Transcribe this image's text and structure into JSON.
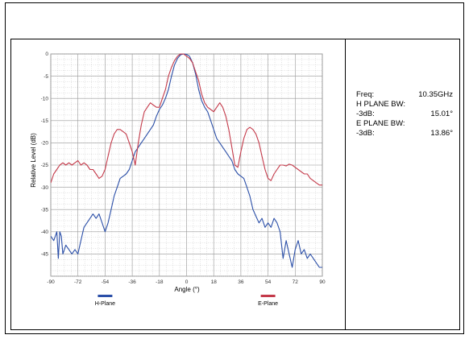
{
  "info": {
    "freq_label": "Freq:",
    "freq_value": "10.35GHz",
    "h_plane_label": "H PLANE BW:",
    "h_3db_label": "-3dB:",
    "h_3db_value": "15.01°",
    "e_plane_label": "E PLANE BW:",
    "e_3db_label": "-3dB:",
    "e_3db_value": "13.86°"
  },
  "chart_data": {
    "type": "line",
    "title": "",
    "xlabel": "Angle (°)",
    "ylabel": "Relative Level (dB)",
    "xlim": [
      -90,
      90
    ],
    "ylim": [
      -50,
      0
    ],
    "xticks": [
      -90,
      -72,
      -54,
      -36,
      -18,
      0,
      18,
      36,
      54,
      72,
      90
    ],
    "yticks": [
      0,
      -5,
      -10,
      -15,
      -20,
      -25,
      -30,
      -35,
      -40,
      -45
    ],
    "grid": true,
    "legend_position": "bottom",
    "series": [
      {
        "name": "H-Plane",
        "color": "#2b4fa8",
        "x": [
          -90,
          -88,
          -86,
          -85,
          -84,
          -83,
          -82,
          -80,
          -78,
          -76,
          -74,
          -72,
          -70,
          -68,
          -66,
          -64,
          -62,
          -60,
          -58,
          -56,
          -54,
          -52,
          -50,
          -48,
          -46,
          -44,
          -42,
          -40,
          -38,
          -36,
          -34,
          -32,
          -30,
          -28,
          -26,
          -24,
          -22,
          -20,
          -18,
          -16,
          -14,
          -12,
          -10,
          -8,
          -6,
          -4,
          -2,
          0,
          2,
          4,
          6,
          8,
          10,
          12,
          14,
          16,
          18,
          20,
          22,
          24,
          26,
          28,
          30,
          32,
          34,
          36,
          38,
          40,
          42,
          44,
          46,
          48,
          50,
          52,
          54,
          56,
          58,
          60,
          62,
          64,
          66,
          68,
          70,
          72,
          74,
          76,
          78,
          80,
          82,
          84,
          86,
          88,
          90
        ],
        "y": [
          -41,
          -42,
          -40,
          -46,
          -40,
          -41,
          -45,
          -43,
          -44,
          -45,
          -44,
          -45,
          -42,
          -39,
          -38,
          -37,
          -36,
          -37,
          -36,
          -38,
          -40,
          -38,
          -35,
          -32,
          -30,
          -28,
          -27.5,
          -27,
          -26,
          -24,
          -22,
          -21,
          -20,
          -19,
          -18,
          -17,
          -16,
          -14,
          -12.5,
          -11.5,
          -10,
          -8,
          -5,
          -2.5,
          -1,
          -0.2,
          0,
          -0.1,
          -0.5,
          -2,
          -4.5,
          -8,
          -10.5,
          -12,
          -13,
          -15,
          -17,
          -19,
          -20,
          -21,
          -22,
          -23,
          -24,
          -26,
          -27,
          -27.5,
          -28,
          -30,
          -32,
          -35,
          -36.5,
          -38,
          -37,
          -39,
          -38,
          -39,
          -37,
          -38,
          -40,
          -46,
          -42,
          -45,
          -48,
          -44,
          -42,
          -45,
          -44,
          -46,
          -45,
          -46,
          -47,
          -48,
          -48
        ]
      },
      {
        "name": "E-Plane",
        "color": "#c43a4a",
        "x": [
          -90,
          -88,
          -86,
          -84,
          -82,
          -80,
          -78,
          -76,
          -74,
          -72,
          -70,
          -68,
          -66,
          -64,
          -62,
          -60,
          -58,
          -56,
          -54,
          -52,
          -50,
          -48,
          -46,
          -44,
          -42,
          -40,
          -38,
          -36,
          -34,
          -32,
          -30,
          -28,
          -26,
          -24,
          -22,
          -20,
          -18,
          -16,
          -14,
          -12,
          -10,
          -8,
          -6,
          -4,
          -2,
          0,
          2,
          4,
          6,
          8,
          10,
          12,
          14,
          16,
          18,
          20,
          22,
          24,
          26,
          28,
          30,
          32,
          34,
          36,
          38,
          40,
          42,
          44,
          46,
          48,
          50,
          52,
          54,
          56,
          58,
          60,
          62,
          64,
          66,
          68,
          70,
          72,
          74,
          76,
          78,
          80,
          82,
          84,
          86,
          88,
          90
        ],
        "y": [
          -29,
          -27,
          -26,
          -25,
          -24.5,
          -25,
          -24.5,
          -25,
          -24.5,
          -24,
          -25,
          -24.5,
          -25,
          -26,
          -26,
          -27,
          -28,
          -27.5,
          -26,
          -23,
          -20,
          -18,
          -17,
          -17,
          -17.5,
          -18,
          -20,
          -22,
          -25,
          -20,
          -16,
          -13,
          -12,
          -11,
          -11.5,
          -12,
          -12,
          -10,
          -8,
          -5,
          -3,
          -1.5,
          -0.5,
          0,
          0,
          -0.5,
          -1,
          -2,
          -4,
          -6,
          -9,
          -11,
          -12,
          -12.5,
          -13,
          -12,
          -11,
          -12,
          -14,
          -17,
          -21,
          -25,
          -25.5,
          -22,
          -19,
          -17,
          -16.5,
          -17,
          -18,
          -20,
          -23,
          -26,
          -28,
          -28.5,
          -27,
          -26,
          -25,
          -25,
          -25.2,
          -24.8,
          -25,
          -25.5,
          -26,
          -26.5,
          -27,
          -27,
          -28,
          -28.5,
          -29,
          -29.5,
          -29.5
        ]
      }
    ]
  }
}
